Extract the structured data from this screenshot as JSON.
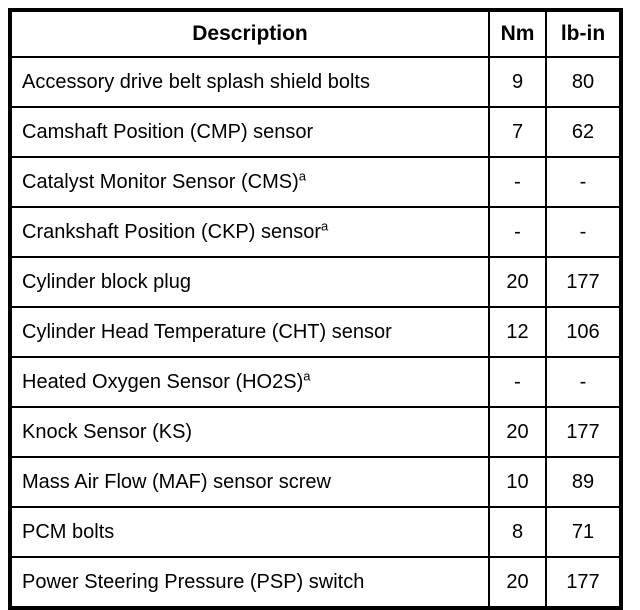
{
  "table": {
    "headers": {
      "description": "Description",
      "nm": "Nm",
      "lbin": "lb-in"
    },
    "footnote_marker": "a",
    "colors": {
      "border": "#000000",
      "background": "#ffffff",
      "text": "#000000"
    },
    "rows": [
      {
        "desc": "Accessory drive belt splash shield bolts",
        "sup": "",
        "nm": "9",
        "lbin": "80"
      },
      {
        "desc": "Camshaft Position (CMP) sensor",
        "sup": "",
        "nm": "7",
        "lbin": "62"
      },
      {
        "desc": "Catalyst Monitor Sensor (CMS)",
        "sup": "a",
        "nm": "-",
        "lbin": "-"
      },
      {
        "desc": "Crankshaft Position (CKP) sensor",
        "sup": "a",
        "nm": "-",
        "lbin": "-"
      },
      {
        "desc": "Cylinder block plug",
        "sup": "",
        "nm": "20",
        "lbin": "177"
      },
      {
        "desc": "Cylinder Head Temperature (CHT) sensor",
        "sup": "",
        "nm": "12",
        "lbin": "106"
      },
      {
        "desc": "Heated Oxygen Sensor (HO2S)",
        "sup": "a",
        "nm": "-",
        "lbin": "-"
      },
      {
        "desc": "Knock Sensor (KS)",
        "sup": "",
        "nm": "20",
        "lbin": "177"
      },
      {
        "desc": "Mass Air Flow (MAF) sensor screw",
        "sup": "",
        "nm": "10",
        "lbin": "89"
      },
      {
        "desc": "PCM bolts",
        "sup": "",
        "nm": "8",
        "lbin": "71"
      },
      {
        "desc": "Power Steering Pressure (PSP) switch",
        "sup": "",
        "nm": "20",
        "lbin": "177"
      }
    ]
  }
}
